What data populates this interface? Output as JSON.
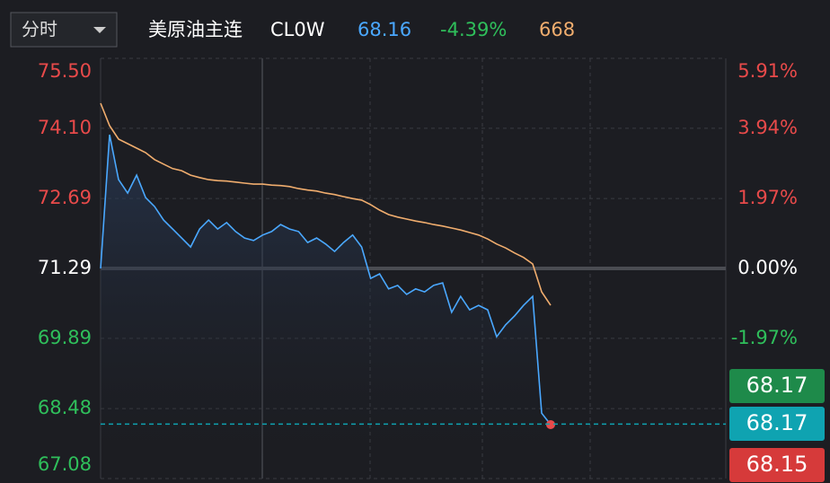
{
  "header": {
    "period": "分时",
    "name": "美原油主连",
    "code": "CL0W",
    "price": 68.16,
    "change": "-4.39%",
    "volume": 668
  },
  "chart_data": {
    "type": "line",
    "series": [
      {
        "name": "price",
        "color": "#4aa8ff",
        "values": [
          71.29,
          73.97,
          73.07,
          72.8,
          73.16,
          72.71,
          72.53,
          72.26,
          72.08,
          71.9,
          71.72,
          72.08,
          72.26,
          72.08,
          72.21,
          72.03,
          71.9,
          71.85,
          71.96,
          72.03,
          72.17,
          72.08,
          72.03,
          71.81,
          71.9,
          71.78,
          71.63,
          71.81,
          71.96,
          71.72,
          71.09,
          71.18,
          70.88,
          70.95,
          70.77,
          70.88,
          70.82,
          70.95,
          71.0,
          70.41,
          70.73,
          70.46,
          70.55,
          70.46,
          69.92,
          70.16,
          70.34,
          70.55,
          70.73,
          68.39,
          68.16
        ]
      },
      {
        "name": "average",
        "color": "#f0ad6e",
        "values": [
          74.6,
          74.15,
          73.88,
          73.79,
          73.7,
          73.61,
          73.47,
          73.38,
          73.29,
          73.25,
          73.16,
          73.11,
          73.07,
          73.05,
          73.04,
          73.02,
          73.0,
          72.98,
          72.98,
          72.96,
          72.95,
          72.93,
          72.89,
          72.86,
          72.84,
          72.8,
          72.77,
          72.73,
          72.69,
          72.66,
          72.57,
          72.46,
          72.37,
          72.32,
          72.28,
          72.24,
          72.21,
          72.17,
          72.14,
          72.1,
          72.06,
          72.01,
          71.96,
          71.88,
          71.78,
          71.7,
          71.6,
          71.51,
          71.38,
          70.82,
          70.55
        ]
      }
    ],
    "ylim": [
      67.08,
      75.5
    ],
    "yticks": [
      {
        "value": 75.5,
        "label": "75.50"
      },
      {
        "value": 74.1,
        "label": "74.10"
      },
      72.69,
      71.29,
      69.89,
      68.48,
      67.08
    ],
    "y2lim": [
      -5.91,
      5.91
    ],
    "y2ticks": [
      {
        "value": 5.91,
        "label": "5.91%"
      },
      {
        "value": 3.94,
        "label": "3.94%"
      },
      {
        "value": 1.97,
        "label": "1.97%"
      },
      {
        "value": 0,
        "label": "0.00%"
      },
      {
        "value": -1.97,
        "label": "-1.97%"
      }
    ],
    "price_tags": [
      {
        "value": 68.17,
        "color": "#1e8a4a"
      },
      {
        "value": 68.17,
        "color": "#0fa3b1"
      },
      {
        "value": 68.15,
        "color": "#d63a3a"
      }
    ],
    "grid": true
  }
}
